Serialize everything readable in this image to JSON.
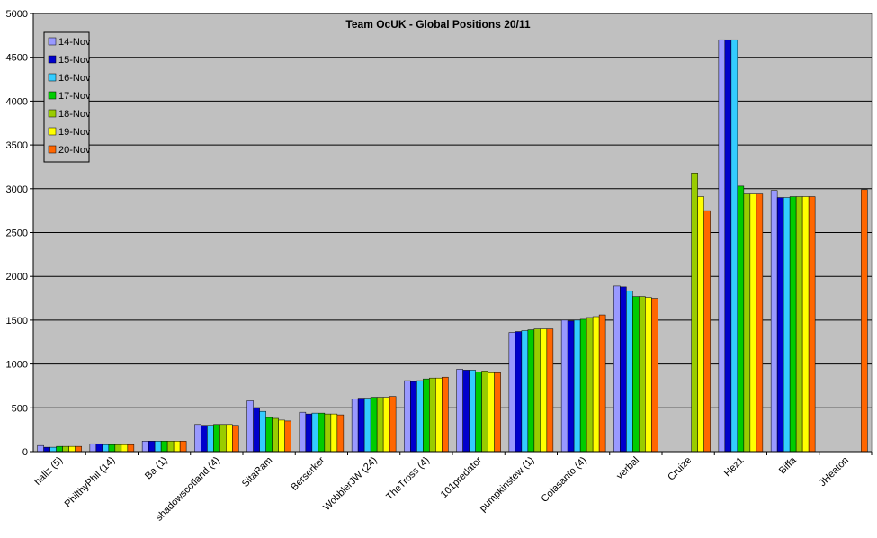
{
  "chart_data": {
    "type": "bar",
    "title": "Team OcUK - Global Positions 20/11",
    "xlabel": "",
    "ylabel": "",
    "ylim": [
      0,
      5000
    ],
    "yticks": [
      0,
      500,
      1000,
      1500,
      2000,
      2500,
      3000,
      3500,
      4000,
      4500,
      5000
    ],
    "grid": true,
    "legend_position": "top-left",
    "plot_background": "#c0c0c0",
    "categories": [
      "hallz (5)",
      "PhilthyPhil (14)",
      "Ba (1)",
      "shadowscotland (4)",
      "SitaRam",
      "Berserker",
      "WobblerJW (24)",
      "TheTross (4)",
      "101predator",
      "pumpkinstew (1)",
      "Colasanto (4)",
      "verbal",
      "Cruize",
      "Hez1",
      "Biffa",
      "JHeaton"
    ],
    "series": [
      {
        "name": "14-Nov",
        "color": "#9999ff",
        "values": [
          70,
          90,
          120,
          310,
          580,
          450,
          600,
          810,
          940,
          1360,
          1500,
          1890,
          null,
          4700,
          2980,
          null
        ]
      },
      {
        "name": "15-Nov",
        "color": "#0000cc",
        "values": [
          50,
          90,
          120,
          300,
          500,
          430,
          610,
          800,
          930,
          1370,
          1490,
          1880,
          null,
          4700,
          2900,
          null
        ]
      },
      {
        "name": "16-Nov",
        "color": "#33ccff",
        "values": [
          50,
          80,
          120,
          300,
          460,
          440,
          610,
          810,
          930,
          1380,
          1500,
          1830,
          null,
          4700,
          2900,
          null
        ]
      },
      {
        "name": "17-Nov",
        "color": "#00cc00",
        "values": [
          60,
          80,
          120,
          310,
          390,
          440,
          620,
          830,
          910,
          1390,
          1510,
          1770,
          null,
          3030,
          2910,
          null
        ]
      },
      {
        "name": "18-Nov",
        "color": "#99cc00",
        "values": [
          60,
          80,
          120,
          310,
          380,
          430,
          620,
          840,
          920,
          1400,
          1530,
          1770,
          3180,
          2940,
          2910,
          null
        ]
      },
      {
        "name": "19-Nov",
        "color": "#ffff00",
        "values": [
          60,
          80,
          120,
          310,
          360,
          430,
          620,
          840,
          900,
          1400,
          1540,
          1760,
          2910,
          2940,
          2910,
          null
        ]
      },
      {
        "name": "20-Nov",
        "color": "#ff6600",
        "values": [
          60,
          80,
          120,
          300,
          350,
          420,
          630,
          850,
          900,
          1400,
          1560,
          1750,
          2750,
          2940,
          2910,
          2990
        ]
      }
    ]
  }
}
